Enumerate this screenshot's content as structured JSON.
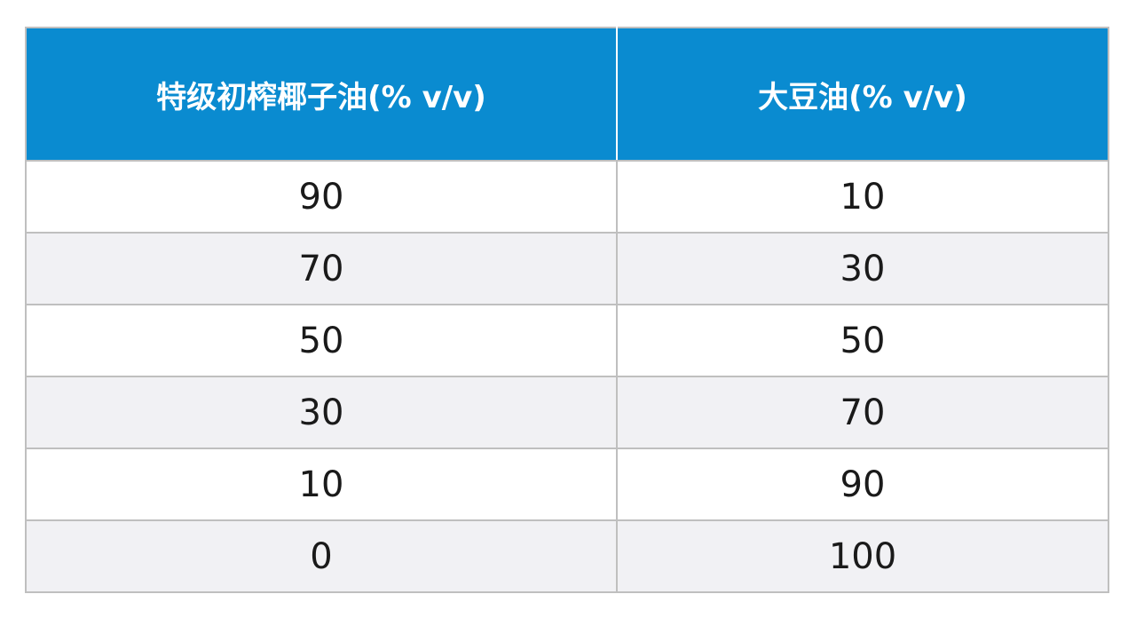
{
  "table": {
    "headers": [
      "特级初榨椰子油(% v/v)",
      "大豆油(% v/v)"
    ],
    "rows": [
      [
        "90",
        "10"
      ],
      [
        "70",
        "30"
      ],
      [
        "50",
        "50"
      ],
      [
        "30",
        "70"
      ],
      [
        "10",
        "90"
      ],
      [
        "0",
        "100"
      ]
    ]
  },
  "colors": {
    "header_bg": "#0a8bd0",
    "header_text": "#ffffff",
    "row_alt_bg": "#f1f1f4",
    "grid": "#bfbfbf"
  }
}
